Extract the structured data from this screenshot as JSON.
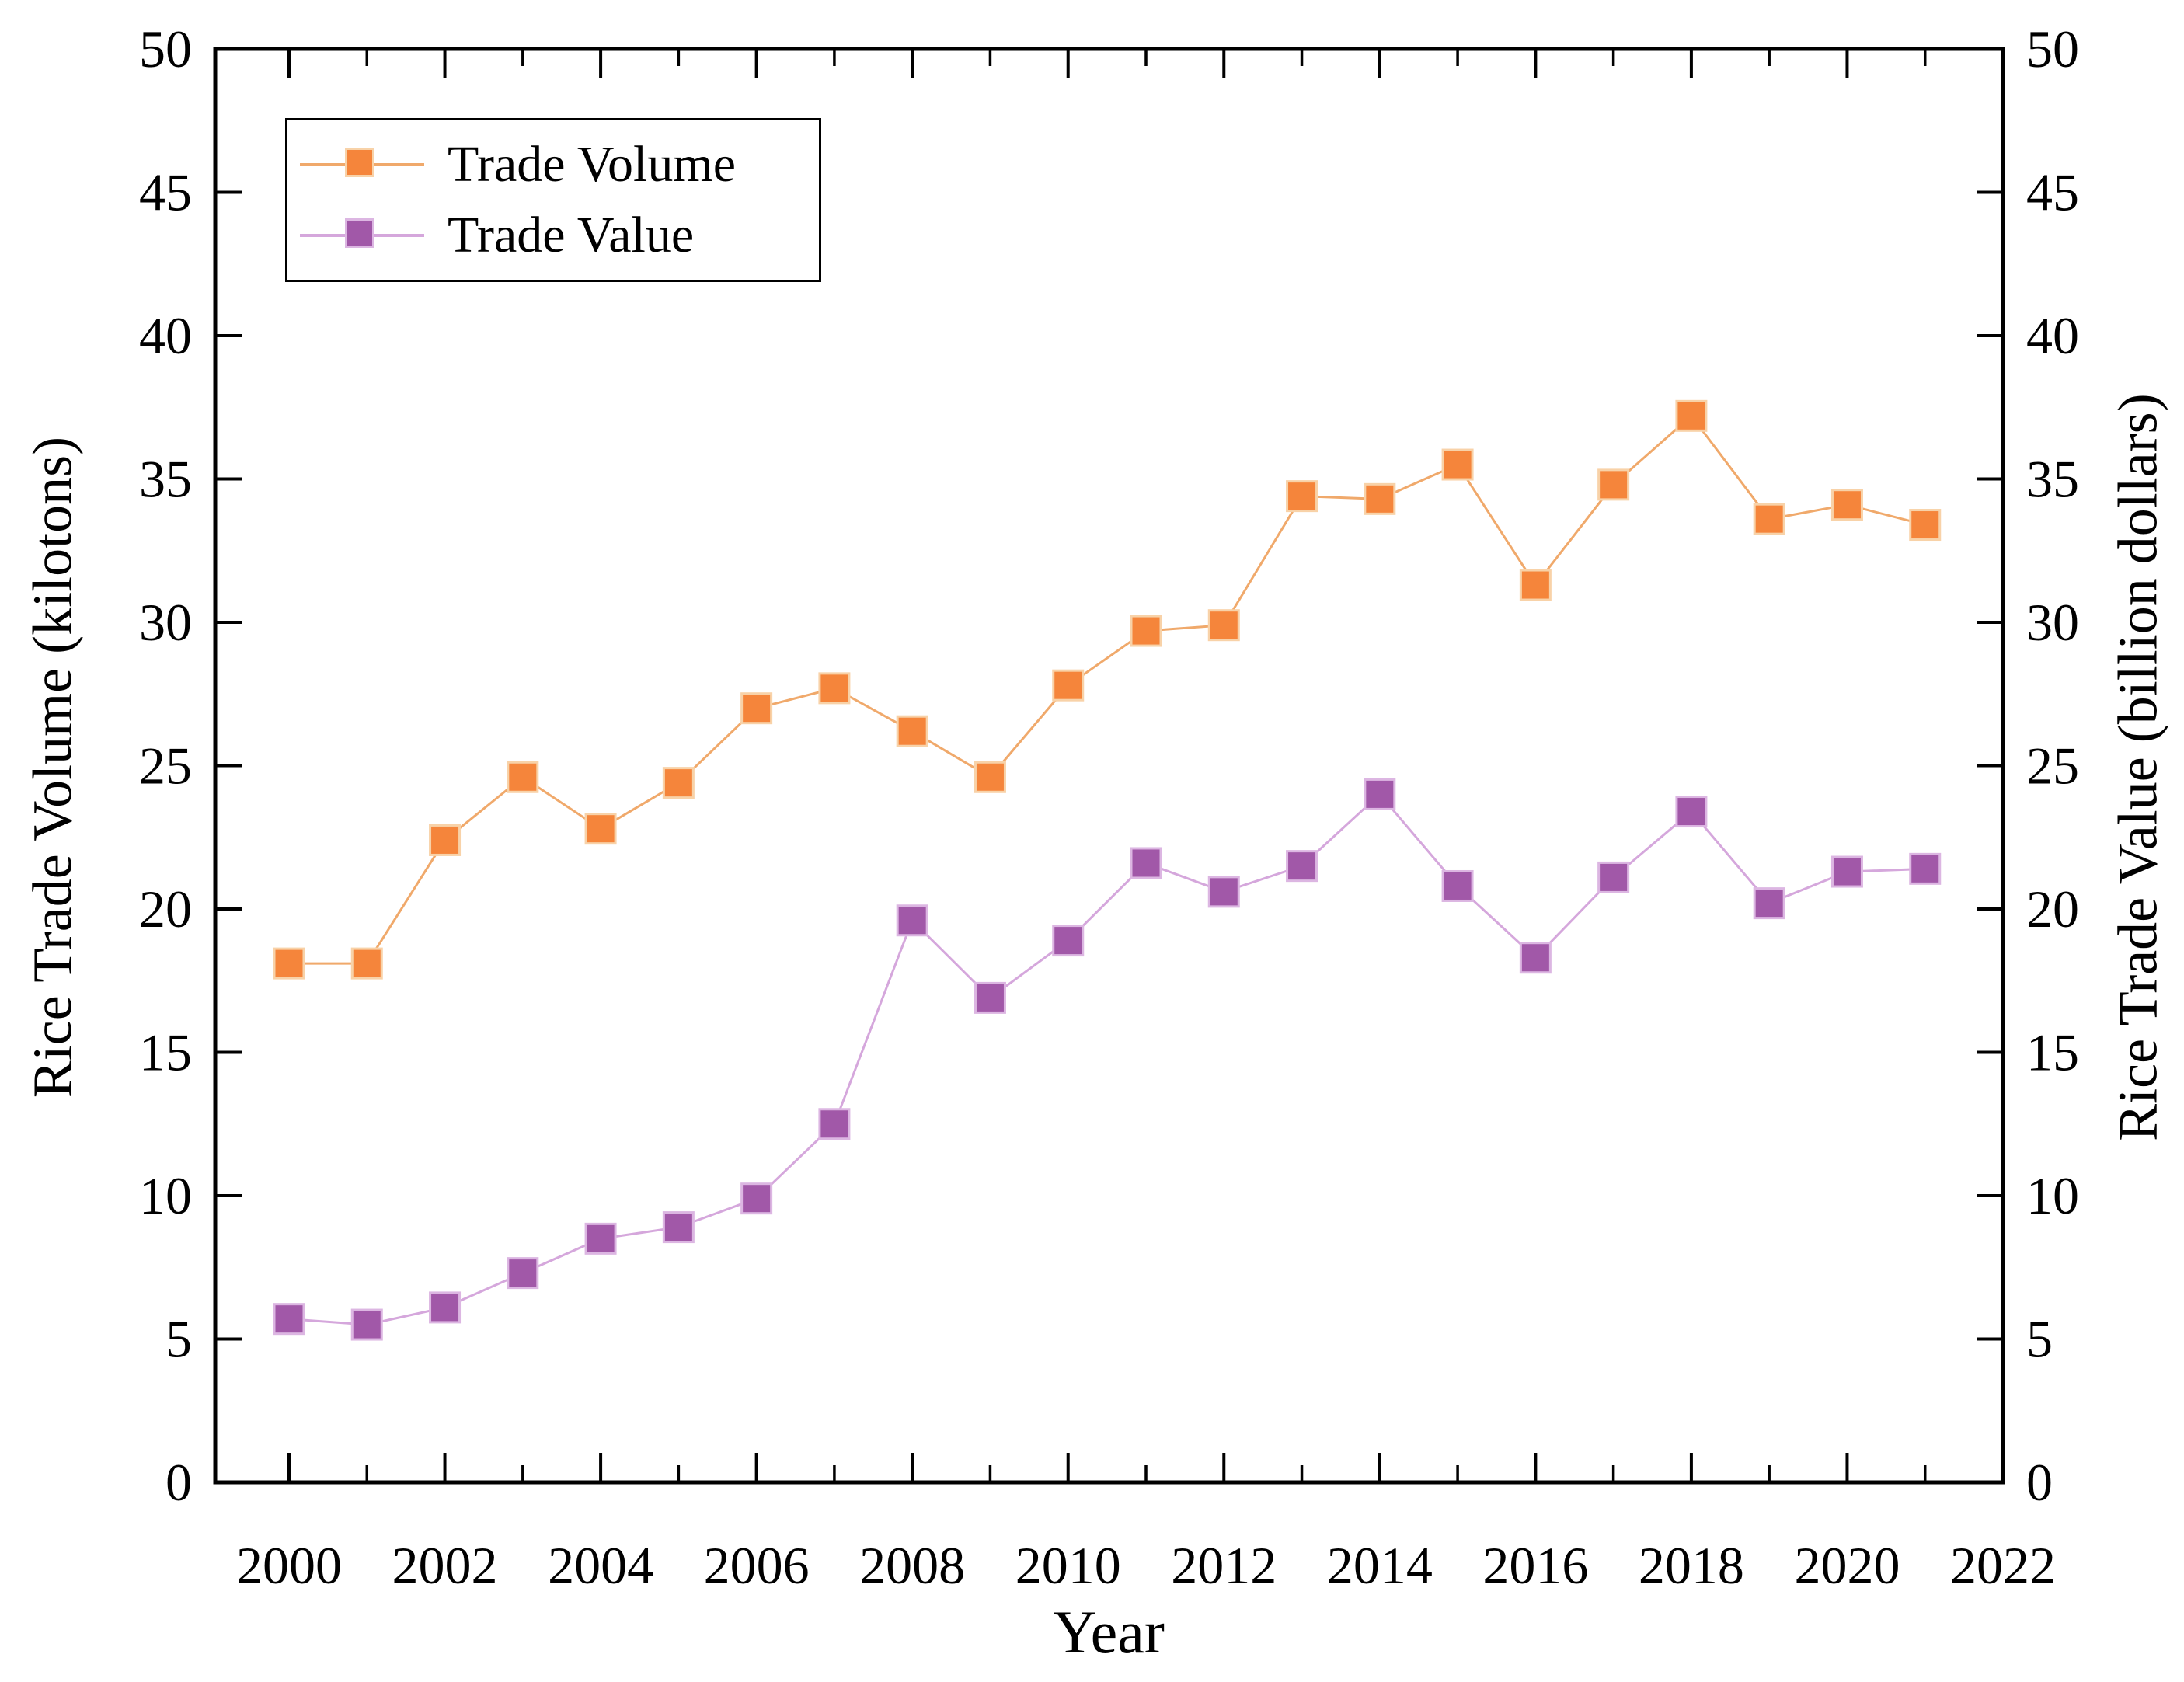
{
  "background": "#ffffff",
  "text_color": "#000000",
  "chart_data": {
    "type": "line",
    "title": "",
    "xlabel": "Year",
    "ylabel_left": "Rice Trade Volume (kilotons)",
    "ylabel_right": "Rice Trade Value (billion dollars)",
    "grid": false,
    "legend": {
      "position": "top-left",
      "items": [
        "Trade Volume",
        "Trade Value"
      ]
    },
    "x": [
      2000,
      2001,
      2002,
      2003,
      2004,
      2005,
      2006,
      2007,
      2008,
      2009,
      2010,
      2011,
      2012,
      2013,
      2014,
      2015,
      2016,
      2017,
      2018,
      2019,
      2020,
      2021
    ],
    "series": [
      {
        "name": "Trade Volume",
        "axis": "left",
        "marker": "square",
        "color": "#F5853B",
        "edge_color": "#F8D2A8",
        "line_color": "#F0A96B",
        "values": [
          18.1,
          18.1,
          22.4,
          24.6,
          22.8,
          24.4,
          27.0,
          27.7,
          26.2,
          24.6,
          27.8,
          29.7,
          29.9,
          34.4,
          34.3,
          35.5,
          31.3,
          34.8,
          37.2,
          33.6,
          34.1,
          33.4
        ]
      },
      {
        "name": "Trade Value",
        "axis": "right",
        "marker": "square",
        "color": "#A158A8",
        "edge_color": "#DCB6E2",
        "line_color": "#D5A7DC",
        "values": [
          5.7,
          5.5,
          6.1,
          7.3,
          8.5,
          8.9,
          9.9,
          12.5,
          19.6,
          16.9,
          18.9,
          21.6,
          20.6,
          21.5,
          24.0,
          20.8,
          18.3,
          21.1,
          23.4,
          20.2,
          21.3,
          21.4
        ]
      }
    ],
    "y_axis_left": {
      "label": "Rice Trade Volume (kilotons)",
      "min": 0,
      "max": 50,
      "tick_step": 5,
      "ticks": [
        0,
        5,
        10,
        15,
        20,
        25,
        30,
        35,
        40,
        45,
        50
      ]
    },
    "y_axis_right": {
      "label": "Rice Trade Value (billion dollars)",
      "min": 0,
      "max": 50,
      "tick_step": 5,
      "ticks": [
        0,
        5,
        10,
        15,
        20,
        25,
        30,
        35,
        40,
        45,
        50
      ]
    },
    "x_axis": {
      "label": "Year",
      "major_ticks": [
        2000,
        2002,
        2004,
        2006,
        2008,
        2010,
        2012,
        2014,
        2016,
        2018,
        2020,
        2022
      ],
      "minor_ticks": [
        2001,
        2003,
        2005,
        2007,
        2009,
        2011,
        2013,
        2015,
        2017,
        2019,
        2021
      ]
    }
  }
}
